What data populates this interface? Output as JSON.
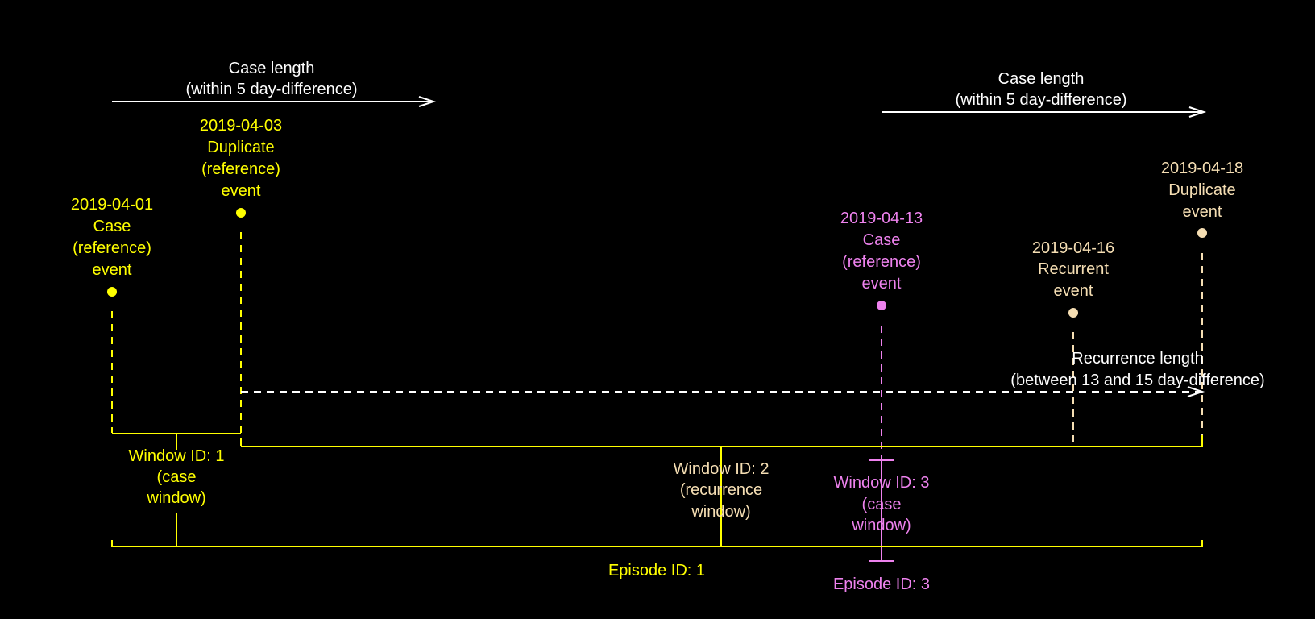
{
  "colors": {
    "background": "#000000",
    "white": "#ffffff",
    "yellow": "#ffff00",
    "tan": "#f5deb3",
    "violet": "#ee82ee"
  },
  "case_length_1": {
    "line1": "Case length",
    "line2": "(within 5 day-difference)"
  },
  "case_length_2": {
    "line1": "Case length",
    "line2": "(within 5 day-difference)"
  },
  "recurrence_length": {
    "line1": "Recurrence length",
    "line2": "(between 13 and 15 day-difference)"
  },
  "events": [
    {
      "date": "2019-04-01",
      "line2": "Case",
      "line3": "(reference)",
      "line4": "event"
    },
    {
      "date": "2019-04-03",
      "line2": "Duplicate",
      "line3": "(reference)",
      "line4": "event"
    },
    {
      "date": "2019-04-13",
      "line2": "Case",
      "line3": "(reference)",
      "line4": "event"
    },
    {
      "date": "2019-04-16",
      "line2": "Recurrent",
      "line3": "event"
    },
    {
      "date": "2019-04-18",
      "line2": "Duplicate",
      "line3": "event"
    }
  ],
  "windows": [
    {
      "line1": "Window ID: 1",
      "line2": "(case",
      "line3": "window)"
    },
    {
      "line1": "Window ID: 2",
      "line2": "(recurrence",
      "line3": "window)"
    },
    {
      "line1": "Window ID: 3",
      "line2": "(case",
      "line3": "window)"
    }
  ],
  "episodes": [
    {
      "label": "Episode ID: 1"
    },
    {
      "label": "Episode ID: 3"
    }
  ]
}
